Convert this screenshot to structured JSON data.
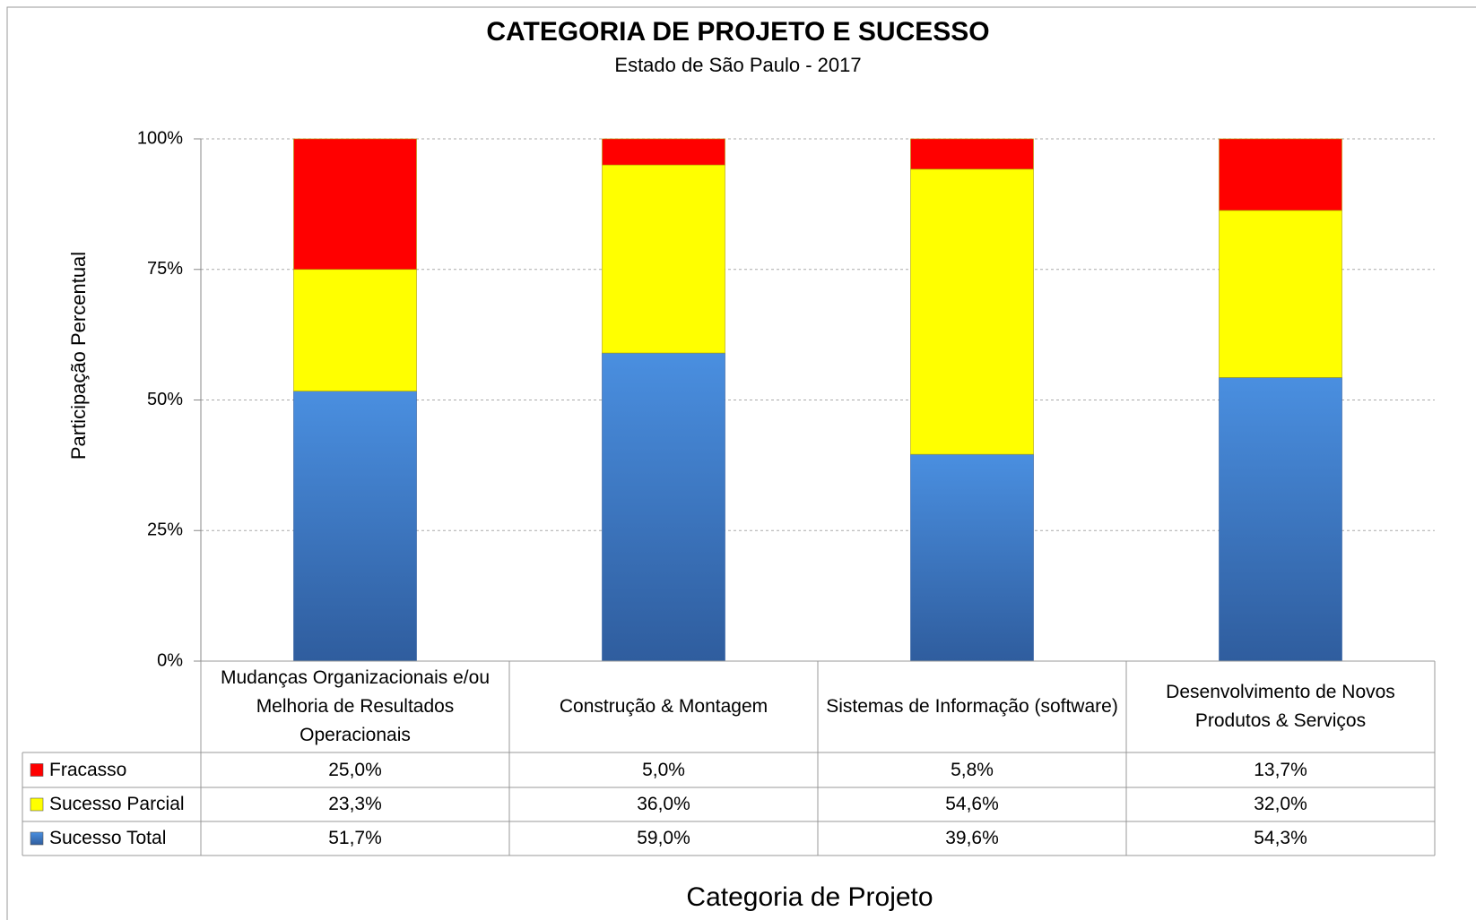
{
  "chart_data": {
    "type": "stacked_bar",
    "title": "CATEGORIA DE PROJETO E SUCESSO",
    "subtitle": "Estado de São Paulo - 2017",
    "y_label": "Participação Percentual",
    "x_label": "Categoria de Projeto",
    "categories": [
      "Mudanças Organizacionais e/ou Melhoria de Resultados Operacionais",
      "Construção & Montagem",
      "Sistemas de Informação (software)",
      "Desenvolvimento de Novos Produtos & Serviços"
    ],
    "series": [
      {
        "name": "Sucesso Total",
        "color": "#3a78c8",
        "values": [
          51.7,
          59.0,
          39.6,
          54.3
        ],
        "value_labels": [
          "51,7%",
          "59,0%",
          "39,6%",
          "54,3%"
        ]
      },
      {
        "name": "Sucesso Parcial",
        "color": "#ffff00",
        "values": [
          23.3,
          36.0,
          54.6,
          32.0
        ],
        "value_labels": [
          "23,3%",
          "36,0%",
          "54,6%",
          "32,0%"
        ]
      },
      {
        "name": "Fracasso",
        "color": "#ff0000",
        "values": [
          25.0,
          5.0,
          5.8,
          13.7
        ],
        "value_labels": [
          "25,0%",
          "5,0%",
          "5,8%",
          "13,7%"
        ]
      }
    ],
    "ylim": [
      0,
      100
    ],
    "yticks": [
      {
        "value": 0,
        "label": "0%"
      },
      {
        "value": 25,
        "label": "25%"
      },
      {
        "value": 50,
        "label": "50%"
      },
      {
        "value": 75,
        "label": "75%"
      },
      {
        "value": 100,
        "label": "100%"
      }
    ],
    "grid": true
  }
}
